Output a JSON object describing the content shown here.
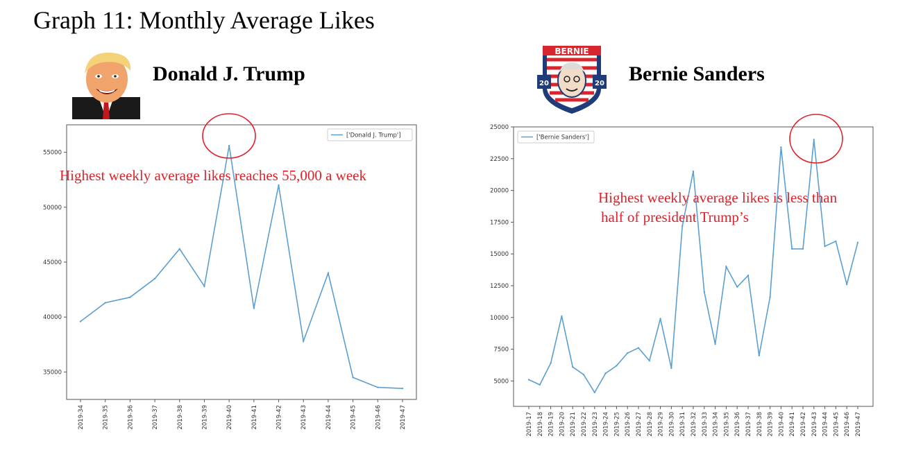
{
  "title": "Graph 11: Monthly Average Likes",
  "panels": {
    "trump": {
      "name": "Donald J. Trump",
      "callout": "Highest weekly average likes reaches 55,000 a week"
    },
    "bernie": {
      "name": "Bernie Sanders",
      "callout_line1": "Highest weekly average likes is less than",
      "callout_line2": "half of president Trump’s",
      "logo_text": "BERNIE",
      "logo_year_left": "20",
      "logo_year_right": "20"
    }
  },
  "colors": {
    "line": "#5a9fd0",
    "annotation": "#e0202a",
    "axis": "#555555"
  },
  "chart_data": [
    {
      "type": "line",
      "title": "",
      "xlabel": "",
      "ylabel": "",
      "legend": "top-right",
      "grid": false,
      "ylim": [
        32500,
        57500
      ],
      "yticks": [
        35000,
        40000,
        45000,
        50000,
        55000
      ],
      "x": [
        "2019-34",
        "2019-35",
        "2019-36",
        "2019-37",
        "2019-38",
        "2019-39",
        "2019-40",
        "2019-41",
        "2019-42",
        "2019-43",
        "2019-44",
        "2019-45",
        "2019-46",
        "2019-47"
      ],
      "series": [
        {
          "name": "['Donald J. Trump']",
          "values": [
            39600,
            41300,
            41800,
            43500,
            46200,
            42800,
            55600,
            40800,
            52000,
            37800,
            44000,
            34500,
            33600,
            33500
          ]
        }
      ]
    },
    {
      "type": "line",
      "title": "",
      "xlabel": "",
      "ylabel": "",
      "legend": "top-left",
      "grid": false,
      "ylim": [
        3000,
        25000
      ],
      "yticks": [
        5000,
        7500,
        10000,
        12500,
        15000,
        17500,
        20000,
        22500,
        25000
      ],
      "x": [
        "2019-17",
        "2019-18",
        "2019-19",
        "2019-20",
        "2019-21",
        "2019-22",
        "2019-23",
        "2019-24",
        "2019-25",
        "2019-26",
        "2019-27",
        "2019-28",
        "2019-29",
        "2019-30",
        "2019-31",
        "2019-32",
        "2019-33",
        "2019-34",
        "2019-35",
        "2019-36",
        "2019-37",
        "2019-38",
        "2019-39",
        "2019-40",
        "2019-41",
        "2019-42",
        "2019-43",
        "2019-44",
        "2019-45",
        "2019-46",
        "2019-47"
      ],
      "series": [
        {
          "name": "['Bernie Sanders']",
          "values": [
            5100,
            4700,
            6400,
            10100,
            6100,
            5500,
            4100,
            5600,
            6200,
            7200,
            7600,
            6600,
            9900,
            6000,
            17200,
            21500,
            12000,
            7900,
            14000,
            12400,
            13300,
            7000,
            11600,
            23400,
            15400,
            15400,
            24000,
            15600,
            16000,
            12600,
            15900
          ]
        }
      ]
    }
  ]
}
